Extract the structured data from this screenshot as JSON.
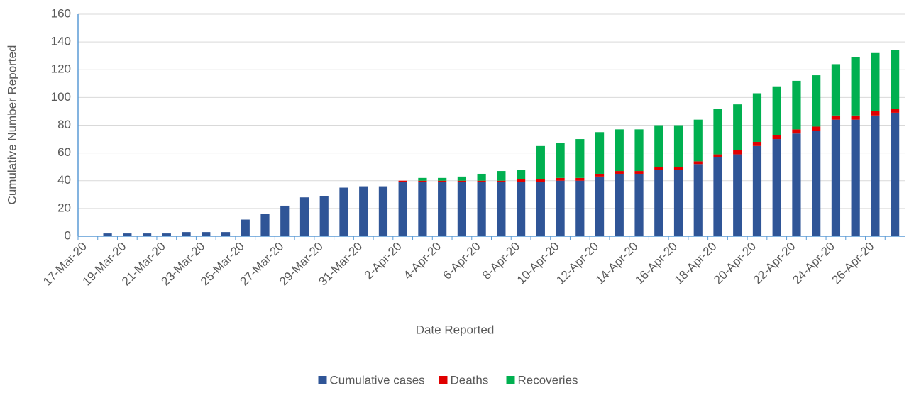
{
  "chart_data": {
    "type": "stacked_bar",
    "x_label": "Date Reported",
    "y_label": "Cumulative Number Reported",
    "categories": [
      "17-Mar-20",
      null,
      "19-Mar-20",
      null,
      "21-Mar-20",
      null,
      "23-Mar-20",
      null,
      "25-Mar-20",
      null,
      "27-Mar-20",
      null,
      "29-Mar-20",
      null,
      "31-Mar-20",
      null,
      "2-Apr-20",
      null,
      "4-Apr-20",
      null,
      "6-Apr-20",
      null,
      "8-Apr-20",
      null,
      "10-Apr-20",
      null,
      "12-Apr-20",
      null,
      "14-Apr-20",
      null,
      "16-Apr-20",
      null,
      "18-Apr-20",
      null,
      "20-Apr-20",
      null,
      "22-Apr-20",
      null,
      "24-Apr-20",
      null,
      "26-Apr-20",
      null
    ],
    "series": [
      {
        "name": "Cumulative cases",
        "color": "#2f5597",
        "values": [
          0,
          2,
          2,
          2,
          2,
          3,
          3,
          3,
          12,
          16,
          22,
          28,
          29,
          35,
          36,
          36,
          39,
          39,
          39,
          39,
          39,
          39,
          39,
          39,
          40,
          40,
          43,
          45,
          45,
          48,
          48,
          52,
          57,
          59,
          65,
          70,
          74,
          76,
          84,
          84,
          87,
          89
        ]
      },
      {
        "name": "Deaths",
        "color": "#e00000",
        "values": [
          0,
          0,
          0,
          0,
          0,
          0,
          0,
          0,
          0,
          0,
          0,
          0,
          0,
          0,
          0,
          0,
          1,
          1,
          1,
          1,
          1,
          1,
          2,
          2,
          2,
          2,
          2,
          2,
          2,
          2,
          2,
          2,
          2,
          3,
          3,
          3,
          3,
          3,
          3,
          3,
          3,
          3
        ]
      },
      {
        "name": "Recoveries",
        "color": "#00b050",
        "values": [
          0,
          0,
          0,
          0,
          0,
          0,
          0,
          0,
          0,
          0,
          0,
          0,
          0,
          0,
          0,
          0,
          0,
          2,
          2,
          3,
          5,
          7,
          7,
          24,
          25,
          28,
          30,
          30,
          30,
          30,
          30,
          30,
          33,
          33,
          35,
          35,
          35,
          37,
          37,
          42,
          42,
          42
        ]
      }
    ],
    "ylim": [
      0,
      160
    ],
    "yticks": [
      0,
      20,
      40,
      60,
      80,
      100,
      120,
      140,
      160
    ],
    "grid": true,
    "legend": "bottom"
  }
}
